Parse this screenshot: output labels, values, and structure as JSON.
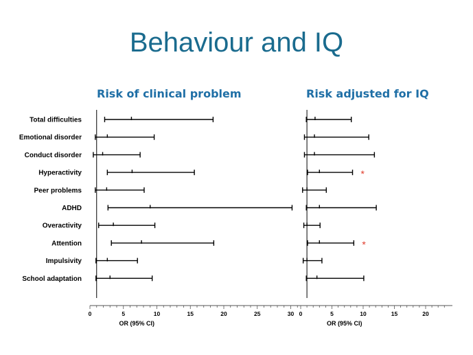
{
  "slide": {
    "title": "Behaviour and IQ"
  },
  "chart_data": [
    {
      "type": "forest",
      "title": "Risk of clinical problem",
      "xlabel": "OR (95% CI)",
      "xlim": [
        0,
        31
      ],
      "xticks": [
        0,
        5,
        10,
        15,
        20,
        25,
        30
      ],
      "reference_line": 1,
      "categories": [
        "Total difficulties",
        "Emotional disorder",
        "Conduct disorder",
        "Hyperactivity",
        "Peer problems",
        "ADHD",
        "Overactivity",
        "Attention",
        "Impulsivity",
        "School adaptation"
      ],
      "lower": [
        2.2,
        0.8,
        0.5,
        2.6,
        0.8,
        2.7,
        1.3,
        3.2,
        0.9,
        0.9
      ],
      "estimate": [
        6.2,
        2.6,
        1.9,
        6.3,
        2.5,
        9.0,
        3.5,
        7.7,
        2.6,
        3.0
      ],
      "upper": [
        18.4,
        9.6,
        7.5,
        15.6,
        8.1,
        30.2,
        9.7,
        18.5,
        7.1,
        9.3
      ],
      "significant": [
        false,
        false,
        false,
        false,
        false,
        false,
        false,
        false,
        false,
        false
      ]
    },
    {
      "type": "forest",
      "title": "Risk adjusted for IQ",
      "xlabel": "OR (95% CI)",
      "xlim": [
        0,
        23
      ],
      "xticks": [
        0,
        5,
        10,
        15,
        20
      ],
      "reference_line": 1,
      "categories": [
        "Total difficulties",
        "Emotional disorder",
        "Conduct disorder",
        "Hyperactivity",
        "Peer problems",
        "ADHD",
        "Overactivity",
        "Attention",
        "Impulsivity",
        "School adaptation"
      ],
      "lower": [
        0.9,
        0.6,
        0.6,
        1.1,
        0.3,
        0.9,
        0.5,
        1.1,
        0.4,
        0.9
      ],
      "estimate": [
        2.3,
        2.2,
        2.2,
        3.0,
        1.0,
        3.0,
        1.0,
        3.0,
        1.0,
        2.6
      ],
      "upper": [
        8.1,
        10.9,
        11.8,
        8.3,
        4.1,
        12.1,
        3.1,
        8.5,
        3.4,
        10.1
      ],
      "significant": [
        false,
        false,
        false,
        true,
        false,
        false,
        false,
        true,
        false,
        false
      ],
      "significance_marker": "*"
    }
  ]
}
